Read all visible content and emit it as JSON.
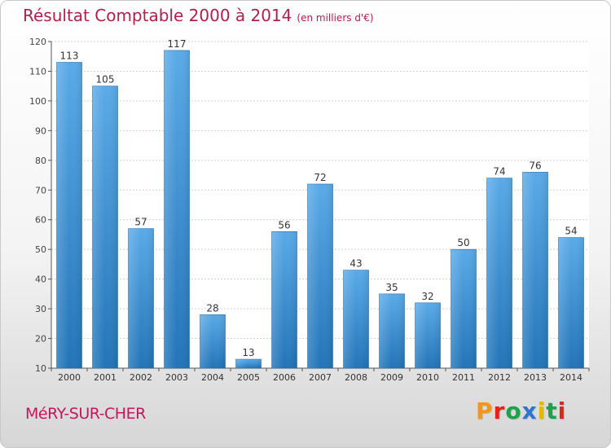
{
  "header": {
    "title": "Résultat Comptable 2000 à 2014",
    "subtitle": "(en milliers d'€)"
  },
  "footer": {
    "commune": "MéRY-SUR-CHER",
    "brand": "Proxiti"
  },
  "colors": {
    "title": "#b0204a",
    "bar_light": "#5aaae8",
    "bar_dark": "#2274b8",
    "brand_letters": [
      "#f7941d",
      "#e0241b",
      "#1aa34a",
      "#2b76d2",
      "#e6b800",
      "#1aa34a",
      "#e0241b"
    ]
  },
  "chart_data": {
    "type": "bar",
    "categories": [
      "2000",
      "2001",
      "2002",
      "2003",
      "2004",
      "2005",
      "2006",
      "2007",
      "2008",
      "2009",
      "2010",
      "2011",
      "2012",
      "2013",
      "2014"
    ],
    "values": [
      113,
      105,
      57,
      117,
      28,
      13,
      56,
      72,
      43,
      35,
      32,
      50,
      74,
      76,
      54
    ],
    "ylim": [
      10,
      120
    ],
    "yticks": [
      10,
      20,
      30,
      40,
      50,
      60,
      70,
      80,
      90,
      100,
      110,
      120
    ],
    "grid": true
  }
}
